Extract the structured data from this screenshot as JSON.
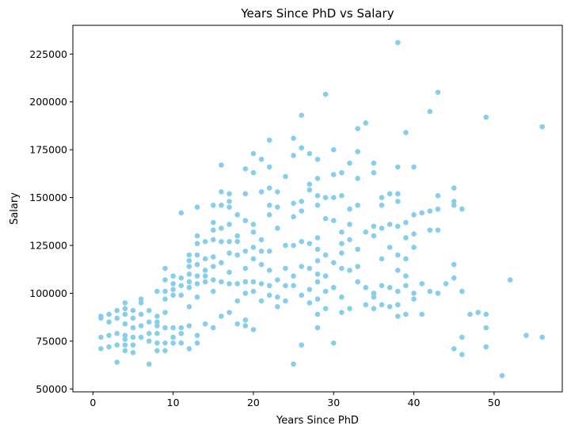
{
  "chart_data": {
    "type": "scatter",
    "title": "Years Since PhD vs Salary",
    "xlabel": "Years Since PhD",
    "ylabel": "Salary",
    "xlim": [
      -2.5,
      58.5
    ],
    "ylim": [
      48500,
      240000
    ],
    "xticks": [
      0,
      10,
      20,
      30,
      40,
      50
    ],
    "yticks": [
      50000,
      75000,
      100000,
      125000,
      150000,
      175000,
      200000,
      225000
    ],
    "grid": false,
    "legend": "none",
    "marker_color": "#87CEEB",
    "points": [
      [
        1,
        88000
      ],
      [
        1,
        87000
      ],
      [
        1,
        77000
      ],
      [
        1,
        71000
      ],
      [
        2,
        89000
      ],
      [
        2,
        85000
      ],
      [
        2,
        78000
      ],
      [
        2,
        72000
      ],
      [
        3,
        91000
      ],
      [
        3,
        87000
      ],
      [
        3,
        79000
      ],
      [
        3,
        73000
      ],
      [
        3,
        64000
      ],
      [
        4,
        95000
      ],
      [
        4,
        92000
      ],
      [
        4,
        89000
      ],
      [
        4,
        84000
      ],
      [
        4,
        78000
      ],
      [
        4,
        76000
      ],
      [
        4,
        73000
      ],
      [
        4,
        70000
      ],
      [
        5,
        91000
      ],
      [
        5,
        87000
      ],
      [
        5,
        82000
      ],
      [
        5,
        77000
      ],
      [
        5,
        73000
      ],
      [
        5,
        69000
      ],
      [
        6,
        97000
      ],
      [
        6,
        95000
      ],
      [
        6,
        89000
      ],
      [
        6,
        83000
      ],
      [
        6,
        77000
      ],
      [
        7,
        91000
      ],
      [
        7,
        85000
      ],
      [
        7,
        79000
      ],
      [
        7,
        75000
      ],
      [
        7,
        63000
      ],
      [
        8,
        101000
      ],
      [
        8,
        88000
      ],
      [
        8,
        85000
      ],
      [
        8,
        83000
      ],
      [
        8,
        79000
      ],
      [
        8,
        74000
      ],
      [
        8,
        70000
      ],
      [
        9,
        113000
      ],
      [
        9,
        107000
      ],
      [
        9,
        101000
      ],
      [
        9,
        97000
      ],
      [
        9,
        90000
      ],
      [
        9,
        82000
      ],
      [
        9,
        74000
      ],
      [
        9,
        70000
      ],
      [
        10,
        109000
      ],
      [
        10,
        105000
      ],
      [
        10,
        102000
      ],
      [
        10,
        99000
      ],
      [
        10,
        82000
      ],
      [
        10,
        77000
      ],
      [
        10,
        74000
      ],
      [
        11,
        142000
      ],
      [
        11,
        108000
      ],
      [
        11,
        104000
      ],
      [
        11,
        99000
      ],
      [
        11,
        82000
      ],
      [
        11,
        79000
      ],
      [
        11,
        74000
      ],
      [
        12,
        120000
      ],
      [
        12,
        117000
      ],
      [
        12,
        114000
      ],
      [
        12,
        110000
      ],
      [
        12,
        106000
      ],
      [
        12,
        103000
      ],
      [
        12,
        93000
      ],
      [
        12,
        83000
      ],
      [
        12,
        71000
      ],
      [
        13,
        145000
      ],
      [
        13,
        130000
      ],
      [
        13,
        126000
      ],
      [
        13,
        120000
      ],
      [
        13,
        115000
      ],
      [
        13,
        109000
      ],
      [
        13,
        105000
      ],
      [
        13,
        98000
      ],
      [
        13,
        78000
      ],
      [
        13,
        74000
      ],
      [
        14,
        127000
      ],
      [
        14,
        118000
      ],
      [
        14,
        112000
      ],
      [
        14,
        109000
      ],
      [
        14,
        106000
      ],
      [
        14,
        84000
      ],
      [
        15,
        146000
      ],
      [
        15,
        137000
      ],
      [
        15,
        133000
      ],
      [
        15,
        128000
      ],
      [
        15,
        119000
      ],
      [
        15,
        114000
      ],
      [
        15,
        107000
      ],
      [
        15,
        101000
      ],
      [
        15,
        82000
      ],
      [
        16,
        167000
      ],
      [
        16,
        153000
      ],
      [
        16,
        146000
      ],
      [
        16,
        134000
      ],
      [
        16,
        127000
      ],
      [
        16,
        116000
      ],
      [
        16,
        106000
      ],
      [
        16,
        88000
      ],
      [
        17,
        152000
      ],
      [
        17,
        148000
      ],
      [
        17,
        145000
      ],
      [
        17,
        136000
      ],
      [
        17,
        127000
      ],
      [
        17,
        121000
      ],
      [
        17,
        111000
      ],
      [
        17,
        105000
      ],
      [
        17,
        90000
      ],
      [
        18,
        141000
      ],
      [
        18,
        130000
      ],
      [
        18,
        127000
      ],
      [
        18,
        120000
      ],
      [
        18,
        105000
      ],
      [
        18,
        96000
      ],
      [
        18,
        84000
      ],
      [
        19,
        165000
      ],
      [
        19,
        152000
      ],
      [
        19,
        138000
      ],
      [
        19,
        122000
      ],
      [
        19,
        113000
      ],
      [
        19,
        106000
      ],
      [
        19,
        100000
      ],
      [
        19,
        86000
      ],
      [
        19,
        83000
      ],
      [
        20,
        173000
      ],
      [
        20,
        163000
      ],
      [
        20,
        136000
      ],
      [
        20,
        132000
      ],
      [
        20,
        124000
      ],
      [
        20,
        118000
      ],
      [
        20,
        106000
      ],
      [
        20,
        101000
      ],
      [
        20,
        81000
      ],
      [
        21,
        170000
      ],
      [
        21,
        153000
      ],
      [
        21,
        128000
      ],
      [
        21,
        122000
      ],
      [
        21,
        115000
      ],
      [
        21,
        105000
      ],
      [
        21,
        96000
      ],
      [
        22,
        180000
      ],
      [
        22,
        166000
      ],
      [
        22,
        155000
      ],
      [
        22,
        146000
      ],
      [
        22,
        141000
      ],
      [
        22,
        122000
      ],
      [
        22,
        112000
      ],
      [
        22,
        104000
      ],
      [
        22,
        99000
      ],
      [
        23,
        153000
      ],
      [
        23,
        145000
      ],
      [
        23,
        134000
      ],
      [
        23,
        107000
      ],
      [
        23,
        98000
      ],
      [
        23,
        93000
      ],
      [
        24,
        161000
      ],
      [
        24,
        125000
      ],
      [
        24,
        113000
      ],
      [
        24,
        104000
      ],
      [
        24,
        96000
      ],
      [
        25,
        181000
      ],
      [
        25,
        172000
      ],
      [
        25,
        147000
      ],
      [
        25,
        140000
      ],
      [
        25,
        125000
      ],
      [
        25,
        109000
      ],
      [
        25,
        104000
      ],
      [
        25,
        63000
      ],
      [
        26,
        193000
      ],
      [
        26,
        176000
      ],
      [
        26,
        148000
      ],
      [
        26,
        143000
      ],
      [
        26,
        127000
      ],
      [
        26,
        114000
      ],
      [
        26,
        99000
      ],
      [
        26,
        73000
      ],
      [
        27,
        173000
      ],
      [
        27,
        157000
      ],
      [
        27,
        154000
      ],
      [
        27,
        126000
      ],
      [
        27,
        113000
      ],
      [
        27,
        102000
      ],
      [
        27,
        95000
      ],
      [
        28,
        170000
      ],
      [
        28,
        160000
      ],
      [
        28,
        151000
      ],
      [
        28,
        146000
      ],
      [
        28,
        129000
      ],
      [
        28,
        123000
      ],
      [
        28,
        117000
      ],
      [
        28,
        110000
      ],
      [
        28,
        106000
      ],
      [
        28,
        97000
      ],
      [
        28,
        89000
      ],
      [
        28,
        82000
      ],
      [
        29,
        204000
      ],
      [
        29,
        150000
      ],
      [
        29,
        139000
      ],
      [
        29,
        120000
      ],
      [
        29,
        109000
      ],
      [
        29,
        101000
      ],
      [
        29,
        92000
      ],
      [
        30,
        175000
      ],
      [
        30,
        162000
      ],
      [
        30,
        150000
      ],
      [
        30,
        138000
      ],
      [
        30,
        116000
      ],
      [
        30,
        103000
      ],
      [
        30,
        74000
      ],
      [
        31,
        163000
      ],
      [
        31,
        151000
      ],
      [
        31,
        132000
      ],
      [
        31,
        126000
      ],
      [
        31,
        121000
      ],
      [
        31,
        113000
      ],
      [
        31,
        98000
      ],
      [
        31,
        90000
      ],
      [
        32,
        168000
      ],
      [
        32,
        144000
      ],
      [
        32,
        136000
      ],
      [
        32,
        128000
      ],
      [
        32,
        112000
      ],
      [
        32,
        92000
      ],
      [
        33,
        186000
      ],
      [
        33,
        174000
      ],
      [
        33,
        160000
      ],
      [
        33,
        146000
      ],
      [
        33,
        123000
      ],
      [
        33,
        114000
      ],
      [
        33,
        106000
      ],
      [
        34,
        189000
      ],
      [
        34,
        132000
      ],
      [
        34,
        103000
      ],
      [
        34,
        94000
      ],
      [
        35,
        168000
      ],
      [
        35,
        163000
      ],
      [
        35,
        135000
      ],
      [
        35,
        130000
      ],
      [
        35,
        100000
      ],
      [
        35,
        98000
      ],
      [
        35,
        92000
      ],
      [
        36,
        150000
      ],
      [
        36,
        146000
      ],
      [
        36,
        134000
      ],
      [
        36,
        118000
      ],
      [
        36,
        104000
      ],
      [
        36,
        94000
      ],
      [
        37,
        152000
      ],
      [
        37,
        136000
      ],
      [
        37,
        124000
      ],
      [
        37,
        103000
      ],
      [
        37,
        93000
      ],
      [
        38,
        231000
      ],
      [
        38,
        166000
      ],
      [
        38,
        152000
      ],
      [
        38,
        148000
      ],
      [
        38,
        135000
      ],
      [
        38,
        120000
      ],
      [
        38,
        112000
      ],
      [
        38,
        101000
      ],
      [
        38,
        94000
      ],
      [
        38,
        88000
      ],
      [
        39,
        184000
      ],
      [
        39,
        137000
      ],
      [
        39,
        129000
      ],
      [
        39,
        118000
      ],
      [
        39,
        109000
      ],
      [
        39,
        104000
      ],
      [
        39,
        89000
      ],
      [
        40,
        166000
      ],
      [
        40,
        141000
      ],
      [
        40,
        131000
      ],
      [
        40,
        124000
      ],
      [
        40,
        100000
      ],
      [
        40,
        97000
      ],
      [
        41,
        142000
      ],
      [
        41,
        105000
      ],
      [
        41,
        89000
      ],
      [
        42,
        195000
      ],
      [
        42,
        143000
      ],
      [
        42,
        133000
      ],
      [
        42,
        101000
      ],
      [
        43,
        205000
      ],
      [
        43,
        151000
      ],
      [
        43,
        144000
      ],
      [
        43,
        133000
      ],
      [
        43,
        100000
      ],
      [
        44,
        105000
      ],
      [
        45,
        155000
      ],
      [
        45,
        148000
      ],
      [
        45,
        146000
      ],
      [
        45,
        115000
      ],
      [
        45,
        108000
      ],
      [
        45,
        71000
      ],
      [
        46,
        144000
      ],
      [
        46,
        101000
      ],
      [
        46,
        77000
      ],
      [
        46,
        68000
      ],
      [
        47,
        89000
      ],
      [
        48,
        90000
      ],
      [
        49,
        192000
      ],
      [
        49,
        89000
      ],
      [
        49,
        82000
      ],
      [
        49,
        72000
      ],
      [
        51,
        57000
      ],
      [
        52,
        107000
      ],
      [
        54,
        78000
      ],
      [
        56,
        187000
      ],
      [
        56,
        77000
      ]
    ]
  }
}
